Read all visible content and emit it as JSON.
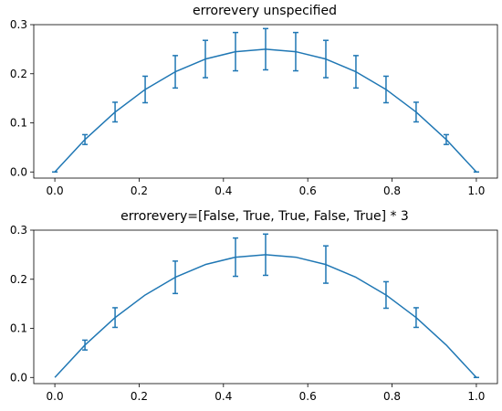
{
  "colors": {
    "series": "#1f77b4",
    "axes": "#000000",
    "background": "#ffffff"
  },
  "chart_data": [
    {
      "type": "line",
      "title": "errorevery unspecified",
      "xlabel": "",
      "ylabel": "",
      "xlim": [
        -0.05,
        1.05
      ],
      "ylim": [
        -0.0125,
        0.3
      ],
      "grid": false,
      "x_ticks": [
        0.0,
        0.2,
        0.4,
        0.6,
        0.8,
        1.0
      ],
      "x_tick_labels": [
        "0.0",
        "0.2",
        "0.4",
        "0.6",
        "0.8",
        "1.0"
      ],
      "y_ticks": [
        0.0,
        0.1,
        0.2,
        0.3
      ],
      "y_tick_labels": [
        "0.0",
        "0.1",
        "0.2",
        "0.3"
      ],
      "x": [
        0.0,
        0.0714,
        0.1429,
        0.2143,
        0.2857,
        0.3571,
        0.4286,
        0.5,
        0.5714,
        0.6429,
        0.7143,
        0.7857,
        0.8571,
        0.9286,
        1.0
      ],
      "y": [
        0.0,
        0.066,
        0.122,
        0.168,
        0.204,
        0.23,
        0.245,
        0.25,
        0.245,
        0.23,
        0.204,
        0.168,
        0.122,
        0.066,
        0.0
      ],
      "yerr": [
        0.0,
        0.01,
        0.02,
        0.027,
        0.033,
        0.038,
        0.039,
        0.042,
        0.039,
        0.038,
        0.033,
        0.027,
        0.02,
        0.01,
        0.0
      ],
      "error_shown": [
        true,
        true,
        true,
        true,
        true,
        true,
        true,
        true,
        true,
        true,
        true,
        true,
        true,
        true,
        true
      ]
    },
    {
      "type": "line",
      "title": "errorevery=[False, True, True, False, True] * 3",
      "xlabel": "",
      "ylabel": "",
      "xlim": [
        -0.05,
        1.05
      ],
      "ylim": [
        -0.0125,
        0.3
      ],
      "grid": false,
      "x_ticks": [
        0.0,
        0.2,
        0.4,
        0.6,
        0.8,
        1.0
      ],
      "x_tick_labels": [
        "0.0",
        "0.2",
        "0.4",
        "0.6",
        "0.8",
        "1.0"
      ],
      "y_ticks": [
        0.0,
        0.1,
        0.2,
        0.3
      ],
      "y_tick_labels": [
        "0.0",
        "0.1",
        "0.2",
        "0.3"
      ],
      "x": [
        0.0,
        0.0714,
        0.1429,
        0.2143,
        0.2857,
        0.3571,
        0.4286,
        0.5,
        0.5714,
        0.6429,
        0.7143,
        0.7857,
        0.8571,
        0.9286,
        1.0
      ],
      "y": [
        0.0,
        0.066,
        0.122,
        0.168,
        0.204,
        0.23,
        0.245,
        0.25,
        0.245,
        0.23,
        0.204,
        0.168,
        0.122,
        0.066,
        0.0
      ],
      "yerr": [
        0.0,
        0.01,
        0.02,
        0.027,
        0.033,
        0.038,
        0.039,
        0.042,
        0.039,
        0.038,
        0.033,
        0.027,
        0.02,
        0.01,
        0.0
      ],
      "error_shown": [
        false,
        true,
        true,
        false,
        true,
        false,
        true,
        true,
        false,
        true,
        false,
        true,
        true,
        false,
        true
      ]
    }
  ]
}
